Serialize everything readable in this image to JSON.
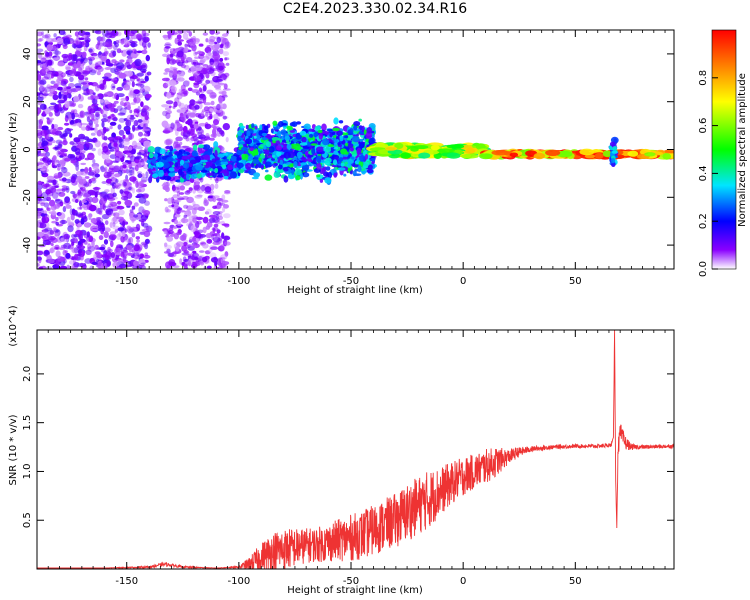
{
  "title": "C2E4.2023.330.02.34.R16",
  "chart_data": [
    {
      "type": "heatmap",
      "title": "C2E4.2023.330.02.34.R16",
      "xlabel": "Height of straight line (km)",
      "ylabel": "Frequency (Hz)",
      "xlim": [
        -190,
        94
      ],
      "ylim": [
        -50,
        50
      ],
      "xticks": [
        -150,
        -100,
        -50,
        0,
        50
      ],
      "yticks": [
        -40,
        -20,
        0,
        20,
        40
      ],
      "grid": false,
      "colorbar": {
        "label": "Normalized spectral amplitude",
        "range": [
          0,
          1
        ],
        "ticks": [
          0.0,
          0.2,
          0.4,
          0.6,
          0.8
        ],
        "colormap": "rainbow",
        "colors": [
          "#ffffff",
          "#8a00ff",
          "#0000ff",
          "#00e5ff",
          "#00ff00",
          "#ffff00",
          "#ff0000"
        ]
      },
      "regions": [
        {
          "x": [
            -190,
            -140
          ],
          "freq": [
            -50,
            50
          ],
          "amplitude": 0.1,
          "pattern": "scattered noise"
        },
        {
          "x": [
            -133,
            -105
          ],
          "freq": [
            -50,
            50
          ],
          "amplitude": 0.08,
          "pattern": "scattered noise"
        },
        {
          "x": [
            -140,
            -100
          ],
          "freq": [
            -15,
            3
          ],
          "amplitude": 0.25,
          "pattern": "noisy band"
        },
        {
          "x": [
            -100,
            -40
          ],
          "freq": [
            -15,
            15
          ],
          "amplitude": 0.3,
          "pattern": "noisy band"
        },
        {
          "x": [
            -40,
            10
          ],
          "freq": [
            -3,
            2
          ],
          "amplitude": 0.7,
          "pattern": "narrow line"
        },
        {
          "x": [
            10,
            94
          ],
          "freq": [
            -3,
            -1
          ],
          "amplitude": 0.95,
          "pattern": "narrow line"
        },
        {
          "x": [
            66,
            68
          ],
          "freq": [
            -7,
            4
          ],
          "amplitude": 0.3,
          "pattern": "spike"
        }
      ]
    },
    {
      "type": "line",
      "xlabel": "Height of straight line (km)",
      "ylabel": "SNR (10 * v/v)",
      "y_multiplier_label": "(x10^4)",
      "xlim": [
        -190,
        94
      ],
      "ylim": [
        0,
        2.45
      ],
      "xticks": [
        -150,
        -100,
        -50,
        0,
        50
      ],
      "yticks": [
        0.5,
        1.0,
        1.5,
        2.0
      ],
      "grid": false,
      "series": [
        {
          "color": "#ee3333",
          "x": [
            -190,
            -160,
            -140,
            -133,
            -125,
            -110,
            -100,
            -95,
            -90,
            -85,
            -80,
            -75,
            -70,
            -65,
            -60,
            -55,
            -50,
            -45,
            -40,
            -35,
            -30,
            -25,
            -20,
            -15,
            -10,
            -5,
            0,
            5,
            10,
            15,
            20,
            25,
            30,
            40,
            50,
            60,
            66,
            67,
            67.5,
            68,
            68.5,
            69,
            70,
            72,
            75,
            80,
            94
          ],
          "y": [
            0.01,
            0.01,
            0.02,
            0.05,
            0.02,
            0.01,
            0.02,
            0.05,
            0.12,
            0.18,
            0.2,
            0.22,
            0.24,
            0.25,
            0.27,
            0.3,
            0.32,
            0.35,
            0.4,
            0.45,
            0.5,
            0.58,
            0.65,
            0.72,
            0.8,
            0.88,
            0.95,
            1.0,
            1.05,
            1.1,
            1.15,
            1.2,
            1.23,
            1.25,
            1.26,
            1.26,
            1.27,
            1.35,
            2.45,
            0.9,
            0.42,
            1.2,
            1.4,
            1.3,
            1.25,
            1.25,
            1.26
          ],
          "noise_amplitude": [
            0.0,
            0.0,
            0.01,
            0.02,
            0.01,
            0.0,
            0.01,
            0.08,
            0.15,
            0.2,
            0.22,
            0.2,
            0.18,
            0.18,
            0.2,
            0.22,
            0.24,
            0.25,
            0.26,
            0.27,
            0.28,
            0.3,
            0.3,
            0.3,
            0.25,
            0.22,
            0.2,
            0.18,
            0.18,
            0.15,
            0.08,
            0.05,
            0.03,
            0.02,
            0.02,
            0.02,
            0.02,
            0.0,
            0.0,
            0.0,
            0.0,
            0.1,
            0.1,
            0.08,
            0.03,
            0.02,
            0.02
          ]
        }
      ]
    }
  ]
}
